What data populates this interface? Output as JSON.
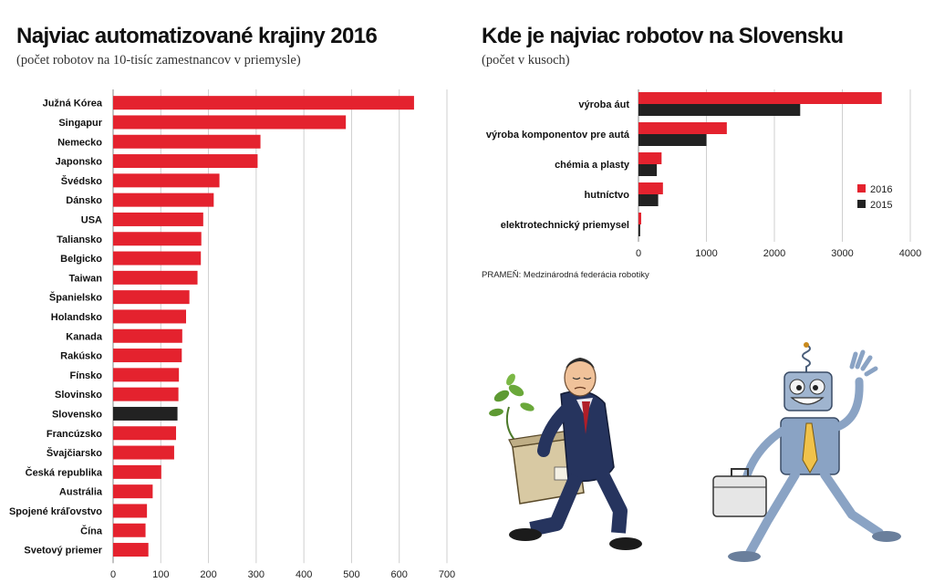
{
  "left_chart": {
    "title": "Najviac automatizované krajiny 2016",
    "subtitle": "(počet robotov na 10-tisíc zamestnancov v priemysle)"
  },
  "right_chart": {
    "title": "Kde je najviac robotov na Slovensku",
    "subtitle": "(počet v kusoch)",
    "source": "PRAMEŇ: Medzinárodná federácia robotiky"
  },
  "colors": {
    "red": "#e4222e",
    "black": "#222222",
    "highlight": "#222222",
    "grid": "#cfcfcf"
  },
  "illustration": {
    "description_icons": [
      "sad-man-with-box-icon",
      "happy-robot-with-briefcase-icon"
    ]
  },
  "chart_data": [
    {
      "type": "bar",
      "orientation": "horizontal",
      "title": "Najviac automatizované krajiny 2016",
      "subtitle": "(počet robotov na 10-tisíc zamestnancov v priemysle)",
      "categories": [
        "Južná Kórea",
        "Singapur",
        "Nemecko",
        "Japonsko",
        "Švédsko",
        "Dánsko",
        "USA",
        "Taliansko",
        "Belgicko",
        "Taiwan",
        "Španielsko",
        "Holandsko",
        "Kanada",
        "Rakúsko",
        "Fínsko",
        "Slovinsko",
        "Slovensko",
        "Francúzsko",
        "Švajčiarsko",
        "Česká republika",
        "Austrália",
        "Spojené kráľovstvo",
        "Čína",
        "Svetový priemer"
      ],
      "values": [
        631,
        488,
        309,
        303,
        223,
        211,
        189,
        185,
        184,
        177,
        160,
        153,
        145,
        144,
        138,
        137,
        135,
        132,
        128,
        101,
        83,
        71,
        68,
        74
      ],
      "highlight": "Slovensko",
      "xlim": [
        0,
        700
      ],
      "xticks": [
        0,
        100,
        200,
        300,
        400,
        500,
        600,
        700
      ],
      "grid": true
    },
    {
      "type": "bar",
      "orientation": "horizontal",
      "title": "Kde je najviac robotov na Slovensku",
      "subtitle": "(počet v kusoch)",
      "categories": [
        "výroba áut",
        "výroba komponentov pre autá",
        "chémia a plasty",
        "hutníctvo",
        "elektrotechnický priemysel"
      ],
      "series": [
        {
          "name": "2016",
          "values": [
            3580,
            1300,
            340,
            360,
            40
          ]
        },
        {
          "name": "2015",
          "values": [
            2380,
            1000,
            270,
            290,
            25
          ]
        }
      ],
      "xlim": [
        0,
        4000
      ],
      "xticks": [
        0,
        1000,
        2000,
        3000,
        4000
      ],
      "grid": true,
      "legend": "right"
    }
  ]
}
